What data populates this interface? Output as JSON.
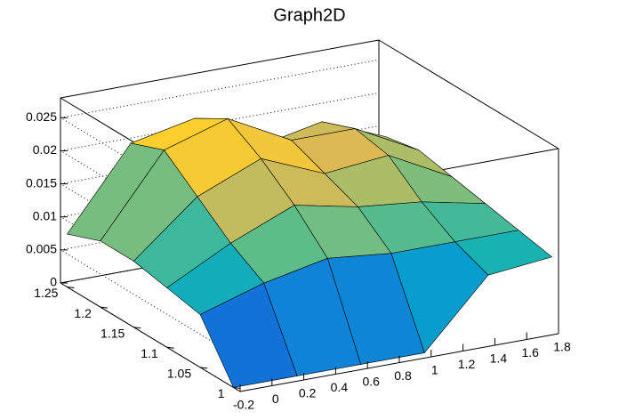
{
  "chart_data": {
    "type": "surface",
    "title": "Graph2D",
    "x": [
      -0.2,
      0.2,
      0.6,
      1.0,
      1.4,
      1.8
    ],
    "y": [
      1.0,
      1.05,
      1.1,
      1.15,
      1.2,
      1.25
    ],
    "z": [
      [
        0,
        0,
        0,
        0,
        0.01,
        0.011
      ],
      [
        0.008,
        0.011,
        0.013,
        0.012,
        0.012,
        0.012
      ],
      [
        0.009,
        0.014,
        0.018,
        0.016,
        0.015,
        0.013
      ],
      [
        0.01,
        0.018,
        0.022,
        0.018,
        0.019,
        0.014
      ],
      [
        0.01,
        0.022,
        0.025,
        0.02,
        0.02,
        0.015
      ],
      [
        0.008,
        0.02,
        0.022,
        0.016,
        0.018,
        0.014
      ]
    ],
    "xlim": [
      -0.2,
      1.8
    ],
    "xticks": [
      -0.2,
      0,
      0.2,
      0.4,
      0.6,
      0.8,
      1,
      1.2,
      1.4,
      1.6,
      1.8
    ],
    "ylim": [
      0.99,
      1.26
    ],
    "yticks": [
      1,
      1.05,
      1.1,
      1.15,
      1.2,
      1.25
    ],
    "zlim": [
      0,
      0.028
    ],
    "zticks": [
      0,
      0.005,
      0.01,
      0.015,
      0.02,
      0.025
    ],
    "grid": true
  }
}
